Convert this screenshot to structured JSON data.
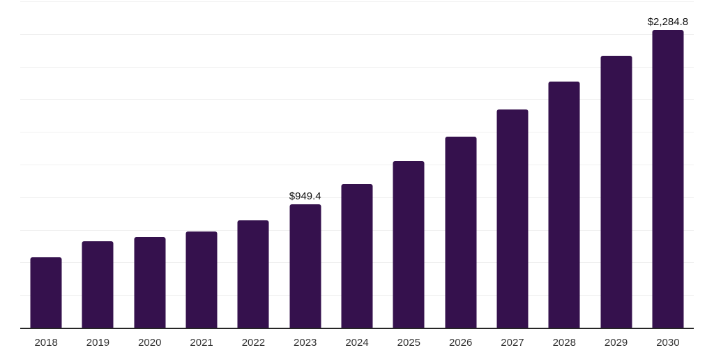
{
  "chart_data": {
    "type": "bar",
    "categories": [
      "2018",
      "2019",
      "2020",
      "2021",
      "2022",
      "2023",
      "2024",
      "2025",
      "2026",
      "2027",
      "2028",
      "2029",
      "2030"
    ],
    "values": [
      545,
      670,
      700,
      745,
      830,
      949.4,
      1105,
      1280,
      1470,
      1675,
      1890,
      2090,
      2284.8
    ],
    "data_labels": [
      "",
      "",
      "",
      "",
      "",
      "$949.4",
      "",
      "",
      "",
      "",
      "",
      "",
      "$2,284.8"
    ],
    "xlabel": "",
    "ylabel": "",
    "ylim": [
      0,
      2500
    ],
    "gridline_step": 250,
    "grid": true,
    "legend_position": "none",
    "y_tick_labels_visible": false,
    "bar_color": "#35114D",
    "axis_line_color": "#262626",
    "gridline_color": "#F0F0F0",
    "tick_label_color": "#333333",
    "data_label_color": "#111111",
    "background_color": "#FFFFFF"
  }
}
